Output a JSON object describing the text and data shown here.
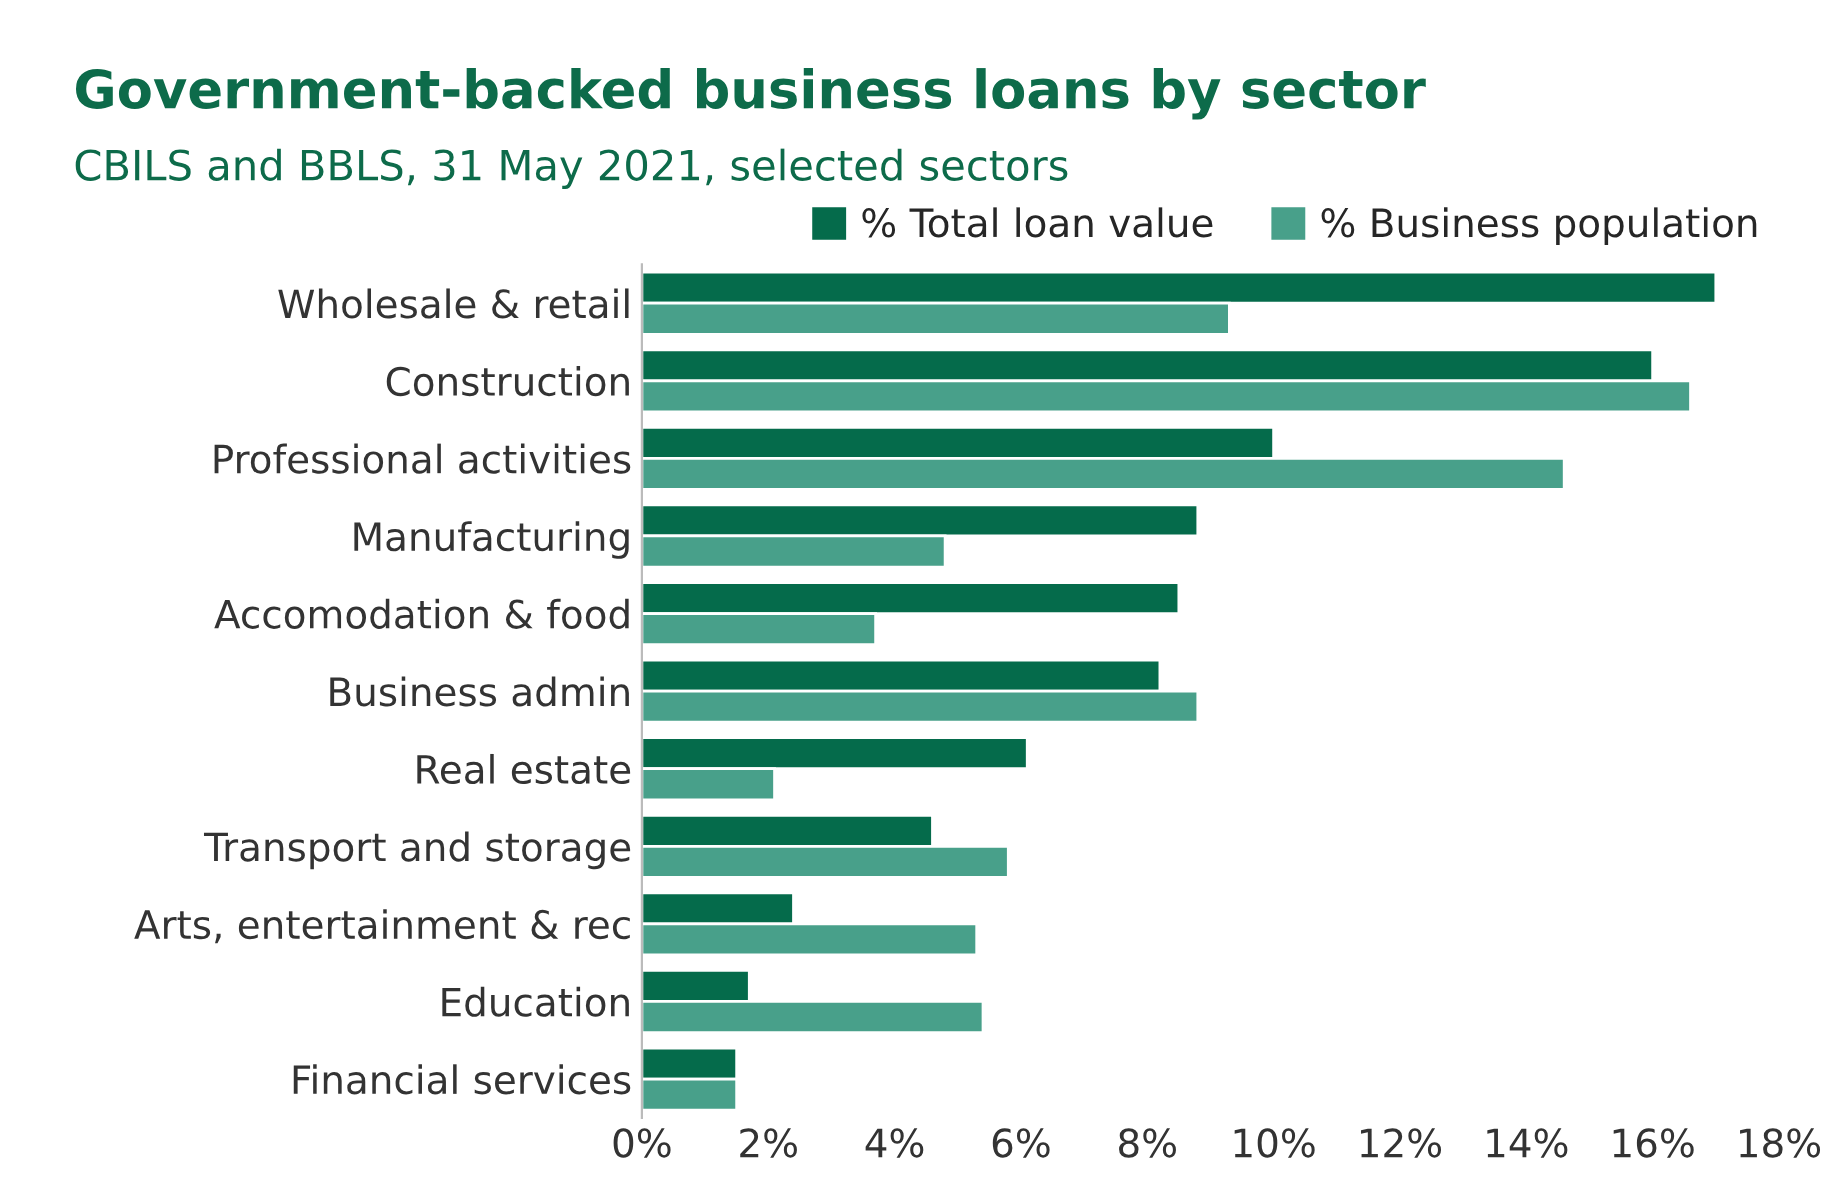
{
  "chart_data": {
    "type": "bar",
    "orientation": "horizontal",
    "title": "Government-backed business loans by sector",
    "subtitle": "CBILS and BBLS, 31 May 2021, selected sectors",
    "categories": [
      "Wholesale & retail",
      "Construction",
      "Professional activities",
      "Manufacturing",
      "Accomodation & food",
      "Business admin",
      "Real estate",
      "Transport and storage",
      "Arts, entertainment & rec",
      "Education",
      "Financial services"
    ],
    "series": [
      {
        "name": "% Total loan value",
        "color": "#056b4b",
        "values": [
          17.0,
          16.0,
          10.0,
          8.8,
          8.5,
          8.2,
          6.1,
          4.6,
          2.4,
          1.7,
          1.5
        ]
      },
      {
        "name": "% Business population",
        "color": "#48a08a",
        "values": [
          9.3,
          16.6,
          14.6,
          4.8,
          3.7,
          8.8,
          2.1,
          5.8,
          5.3,
          5.4,
          1.5
        ]
      }
    ],
    "xlim": [
      0,
      18
    ],
    "xticks": [
      {
        "value": 0,
        "label": "0%"
      },
      {
        "value": 2,
        "label": "2%"
      },
      {
        "value": 4,
        "label": "4%"
      },
      {
        "value": 6,
        "label": "6%"
      },
      {
        "value": 8,
        "label": "8%"
      },
      {
        "value": 10,
        "label": "10%"
      },
      {
        "value": 12,
        "label": "12%"
      },
      {
        "value": 14,
        "label": "14%"
      },
      {
        "value": 16,
        "label": "16%"
      },
      {
        "value": 18,
        "label": "18%"
      }
    ],
    "grid": false,
    "legend": "top right"
  }
}
